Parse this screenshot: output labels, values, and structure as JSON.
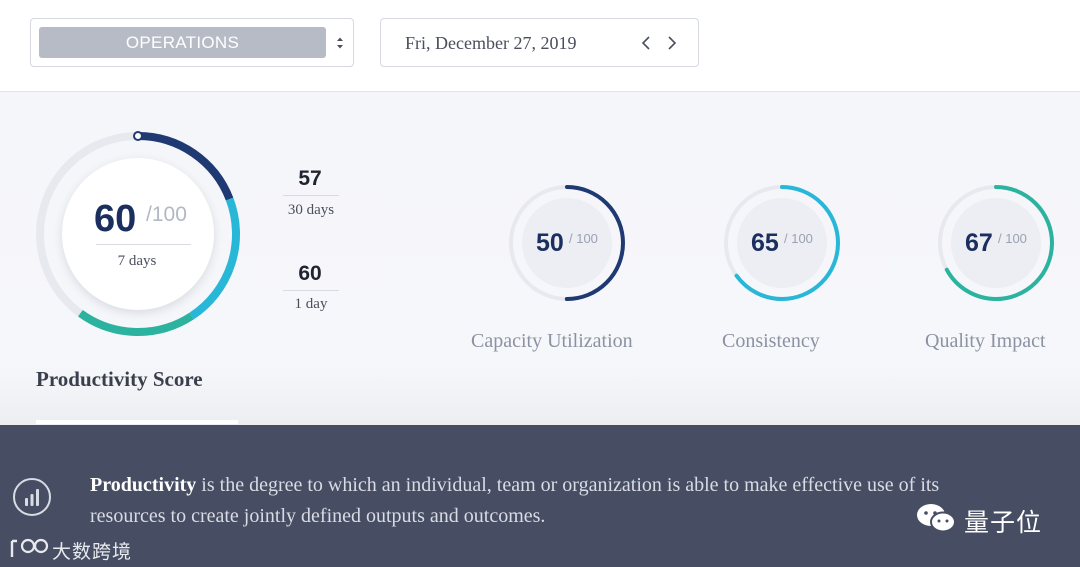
{
  "header": {
    "department": "OPERATIONS",
    "date": "Fri, December 27, 2019"
  },
  "productivity": {
    "title": "Productivity Score",
    "score": "60",
    "max": "/100",
    "period": "7 days",
    "score_value": 60,
    "secondary": [
      {
        "value": "57",
        "label": "30 days"
      },
      {
        "value": "60",
        "label": "1 day"
      }
    ]
  },
  "metrics": [
    {
      "name": "Capacity Utilization",
      "value": "50",
      "max": "/ 100",
      "score": 50,
      "color": "#1f3a72"
    },
    {
      "name": "Consistency",
      "value": "65",
      "max": "/ 100",
      "score": 65,
      "color": "#29b7d8"
    },
    {
      "name": "Quality Impact",
      "value": "67",
      "max": "/ 100",
      "score": 67,
      "color": "#2bb3a0"
    }
  ],
  "info": {
    "term": "Productivity",
    "text": " is the degree to which an individual, team or organization is able to make effective use of its resources to create jointly defined outputs and outcomes."
  },
  "watermarks": {
    "left": "大数跨境",
    "right": "量子位"
  },
  "icons": {
    "select_caret": "sort-caret-icon",
    "prev": "chevron-left-icon",
    "next": "chevron-right-icon",
    "info": "bar-chart-icon"
  }
}
